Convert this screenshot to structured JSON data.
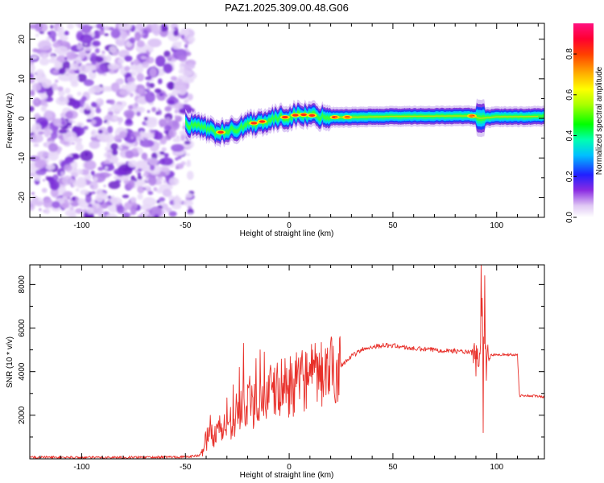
{
  "chart_data": [
    {
      "type": "heatmap",
      "title": "PAZ1.2025.309.00.48.G06",
      "xlabel": "Height of straight line (km)",
      "ylabel": "Frequency (Hz)",
      "xlim": [
        -125,
        123
      ],
      "ylim": [
        -25,
        24
      ],
      "x_ticks": [
        -100,
        -50,
        0,
        50,
        100
      ],
      "y_ticks": [
        -20,
        -10,
        0,
        10,
        20
      ],
      "noise_region_x": [
        -125,
        -47
      ],
      "signal_track": {
        "x": [
          -50,
          -45,
          -40,
          -35,
          -30,
          -25,
          -20,
          -15,
          -10,
          -5,
          0,
          5,
          10,
          20,
          30,
          50,
          80,
          88,
          92,
          100,
          123
        ],
        "freq": [
          -1.5,
          -1.8,
          -2.5,
          -3.5,
          -3.5,
          -2.5,
          -1.5,
          -1.0,
          -0.5,
          0,
          0.5,
          1.0,
          0.8,
          0.3,
          0.3,
          0.5,
          0.6,
          0.6,
          0.0,
          0.4,
          0.5
        ]
      },
      "colorbar": {
        "label": "Normalized spectral amplitude",
        "range": [
          0,
          0.95
        ],
        "ticks": [
          "0.0",
          "0.2",
          "0.4",
          "0.6",
          "0.8"
        ]
      }
    },
    {
      "type": "line",
      "xlabel": "Height of straight line (km)",
      "ylabel": "SNR (10 * v/v)",
      "xlim": [
        -125,
        123
      ],
      "ylim": [
        0,
        8900
      ],
      "x_ticks": [
        -100,
        -50,
        0,
        50,
        100
      ],
      "y_ticks": [
        2000,
        4000,
        6000,
        8000
      ],
      "color": "#e8302a",
      "series": [
        {
          "name": "SNR",
          "x": [
            -125,
            -100,
            -75,
            -50,
            -43,
            -40,
            -35,
            -30,
            -25,
            -20,
            -15,
            -10,
            -5,
            0,
            5,
            10,
            15,
            20,
            25,
            30,
            35,
            40,
            45,
            50,
            60,
            70,
            80,
            85,
            90,
            92,
            93,
            94,
            95,
            97,
            100,
            105,
            110,
            111,
            115,
            123
          ],
          "values": [
            80,
            60,
            70,
            90,
            150,
            900,
            1300,
            1500,
            2100,
            2400,
            2600,
            2900,
            3200,
            3300,
            3500,
            3700,
            3800,
            4000,
            4300,
            4700,
            5000,
            5150,
            5200,
            5200,
            5050,
            5000,
            4950,
            4900,
            4850,
            4400,
            7000,
            5500,
            4800,
            4750,
            4800,
            4780,
            4780,
            2900,
            2900,
            2850
          ]
        }
      ],
      "spikes": [
        {
          "x": -38,
          "y": 2000
        },
        {
          "x": -35,
          "y": 1600
        },
        {
          "x": -30,
          "y": 2800
        },
        {
          "x": -27,
          "y": 3400
        },
        {
          "x": -24,
          "y": 4200
        },
        {
          "x": -22,
          "y": 5300
        },
        {
          "x": -19,
          "y": 3800
        },
        {
          "x": -16,
          "y": 4600
        },
        {
          "x": -14,
          "y": 5000
        },
        {
          "x": -12,
          "y": 4900
        },
        {
          "x": -9,
          "y": 4300
        },
        {
          "x": -6,
          "y": 3900
        },
        {
          "x": -2,
          "y": 4600
        },
        {
          "x": 3,
          "y": 4500
        },
        {
          "x": 8,
          "y": 4900
        },
        {
          "x": 13,
          "y": 4700
        },
        {
          "x": 18,
          "y": 4800
        },
        {
          "x": 90,
          "y": 3800
        },
        {
          "x": 92.5,
          "y": 8900
        },
        {
          "x": 93.5,
          "y": 1200
        },
        {
          "x": 94.2,
          "y": 8400
        },
        {
          "x": 95,
          "y": 3600
        }
      ]
    }
  ]
}
